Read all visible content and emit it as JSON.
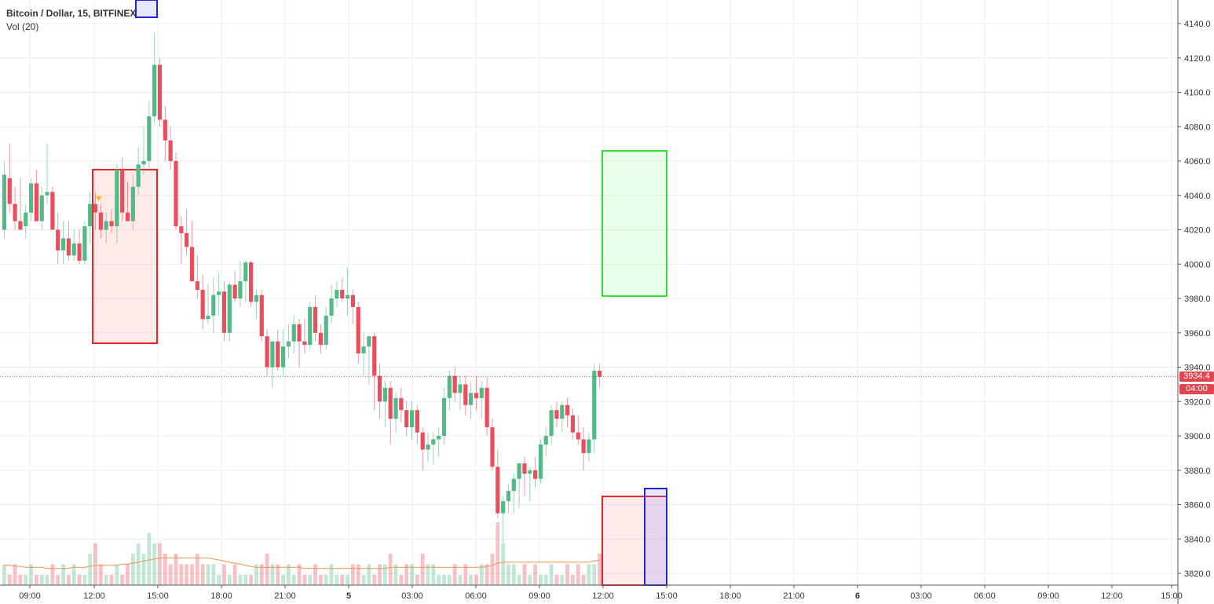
{
  "legend": {
    "title": "Bitcoin / Dollar, 15, BITFINEX",
    "volume_label": "Vol (20)"
  },
  "colors": {
    "up": "#53b987",
    "down": "#eb4d5c",
    "grid": "#e8ecf0",
    "last_price": "#e0454f",
    "box_red": "#e8242a",
    "box_green": "#2ee22e",
    "box_blue": "#2222dd",
    "vol_ma": "#f0924e"
  },
  "current_price": {
    "value": "3934.4",
    "countdown": "04:00"
  },
  "chart_data": {
    "type": "candlestick",
    "title": "",
    "interval_minutes": 15,
    "price_axis": {
      "ylim": [
        3816,
        4150
      ],
      "ticks": [
        4140,
        4120,
        4100,
        4080,
        4060,
        4040,
        4020,
        4000,
        3980,
        3960,
        3940,
        3920,
        3900,
        3880,
        3860,
        3840,
        3820
      ]
    },
    "time_axis": {
      "labels": [
        "09:00",
        "12:00",
        "15:00",
        "18:00",
        "21:00",
        "5",
        "03:00",
        "06:00",
        "09:00",
        "12:00",
        "15:00",
        "18:00",
        "21:00",
        "6",
        "03:00",
        "06:00",
        "09:00",
        "12:00",
        "15:00"
      ]
    },
    "candles": {
      "fields": [
        "open",
        "high",
        "low",
        "close"
      ],
      "values": [
        [
          4020,
          4060,
          4015,
          4052
        ],
        [
          4050,
          4070,
          4030,
          4035
        ],
        [
          4035,
          4045,
          4020,
          4025
        ],
        [
          4025,
          4050,
          4020,
          4020
        ],
        [
          4022,
          4035,
          4015,
          4030
        ],
        [
          4030,
          4050,
          4025,
          4047
        ],
        [
          4047,
          4055,
          4030,
          4025
        ],
        [
          4025,
          4045,
          4020,
          4040
        ],
        [
          4040,
          4070,
          4035,
          4042
        ],
        [
          4042,
          4045,
          4020,
          4020
        ],
        [
          4020,
          4030,
          4000,
          4008
        ],
        [
          4008,
          4025,
          4000,
          4015
        ],
        [
          4015,
          4025,
          4002,
          4005
        ],
        [
          4005,
          4020,
          4002,
          4012
        ],
        [
          4012,
          4020,
          4000,
          4002
        ],
        [
          4002,
          4025,
          4000,
          4022
        ],
        [
          4022,
          4042,
          4012,
          4035
        ],
        [
          4035,
          4042,
          4020,
          4030
        ],
        [
          4030,
          4035,
          4015,
          4020
        ],
        [
          4020,
          4030,
          4012,
          4025
        ],
        [
          4025,
          4032,
          4018,
          4022
        ],
        [
          4022,
          4058,
          4012,
          4055
        ],
        [
          4055,
          4062,
          4025,
          4030
        ],
        [
          4030,
          4048,
          4025,
          4025
        ],
        [
          4025,
          4052,
          4020,
          4045
        ],
        [
          4045,
          4068,
          4040,
          4058
        ],
        [
          4058,
          4080,
          4052,
          4060
        ],
        [
          4060,
          4095,
          4055,
          4086
        ],
        [
          4086,
          4135,
          4082,
          4116
        ],
        [
          4116,
          4120,
          4080,
          4084
        ],
        [
          4084,
          4092,
          4060,
          4072
        ],
        [
          4072,
          4080,
          4055,
          4060
        ],
        [
          4060,
          4065,
          4020,
          4022
        ],
        [
          4022,
          4028,
          4000,
          4018
        ],
        [
          4018,
          4032,
          4005,
          4010
        ],
        [
          4010,
          4025,
          3992,
          3990
        ],
        [
          3990,
          4005,
          3980,
          3985
        ],
        [
          3985,
          3994,
          3962,
          3968
        ],
        [
          3968,
          3988,
          3965,
          3970
        ],
        [
          3970,
          3992,
          3960,
          3982
        ],
        [
          3982,
          3995,
          3970,
          3984
        ],
        [
          3984,
          3990,
          3955,
          3960
        ],
        [
          3960,
          3990,
          3955,
          3988
        ],
        [
          3988,
          3996,
          3978,
          3980
        ],
        [
          3980,
          4002,
          3975,
          3990
        ],
        [
          3990,
          4002,
          3978,
          4001
        ],
        [
          4001,
          4002,
          3975,
          3978
        ],
        [
          3978,
          3985,
          3968,
          3982
        ],
        [
          3982,
          3985,
          3955,
          3958
        ],
        [
          3958,
          3962,
          3935,
          3940
        ],
        [
          3940,
          3950,
          3928,
          3955
        ],
        [
          3955,
          3962,
          3938,
          3940
        ],
        [
          3940,
          3962,
          3935,
          3952
        ],
        [
          3952,
          3965,
          3945,
          3955
        ],
        [
          3955,
          3970,
          3948,
          3965
        ],
        [
          3965,
          3968,
          3940,
          3955
        ],
        [
          3955,
          3968,
          3948,
          3953
        ],
        [
          3953,
          3978,
          3950,
          3975
        ],
        [
          3975,
          3982,
          3955,
          3960
        ],
        [
          3960,
          3965,
          3948,
          3953
        ],
        [
          3953,
          3975,
          3950,
          3970
        ],
        [
          3970,
          3988,
          3965,
          3980
        ],
        [
          3980,
          3990,
          3975,
          3985
        ],
        [
          3985,
          3992,
          3978,
          3980
        ],
        [
          3980,
          3998,
          3970,
          3982
        ],
        [
          3982,
          3985,
          3965,
          3975
        ],
        [
          3975,
          3978,
          3942,
          3948
        ],
        [
          3948,
          3960,
          3935,
          3952
        ],
        [
          3952,
          3958,
          3930,
          3958
        ],
        [
          3958,
          3960,
          3915,
          3935
        ],
        [
          3935,
          3942,
          3910,
          3920
        ],
        [
          3920,
          3932,
          3905,
          3928
        ],
        [
          3928,
          3932,
          3895,
          3910
        ],
        [
          3910,
          3925,
          3902,
          3922
        ],
        [
          3922,
          3928,
          3908,
          3915
        ],
        [
          3915,
          3920,
          3900,
          3905
        ],
        [
          3905,
          3920,
          3898,
          3915
        ],
        [
          3915,
          3918,
          3895,
          3902
        ],
        [
          3902,
          3905,
          3880,
          3892
        ],
        [
          3892,
          3902,
          3885,
          3895
        ],
        [
          3895,
          3902,
          3883,
          3898
        ],
        [
          3898,
          3905,
          3888,
          3900
        ],
        [
          3900,
          3928,
          3895,
          3922
        ],
        [
          3922,
          3938,
          3915,
          3935
        ],
        [
          3935,
          3940,
          3920,
          3925
        ],
        [
          3925,
          3935,
          3915,
          3930
        ],
        [
          3930,
          3935,
          3912,
          3918
        ],
        [
          3918,
          3932,
          3910,
          3925
        ],
        [
          3925,
          3935,
          3915,
          3922
        ],
        [
          3922,
          3932,
          3910,
          3928
        ],
        [
          3928,
          3934,
          3900,
          3905
        ],
        [
          3905,
          3910,
          3880,
          3882
        ],
        [
          3882,
          3892,
          3852,
          3855
        ],
        [
          3855,
          3865,
          3838,
          3862
        ],
        [
          3862,
          3872,
          3855,
          3868
        ],
        [
          3868,
          3878,
          3855,
          3875
        ],
        [
          3875,
          3885,
          3858,
          3884
        ],
        [
          3884,
          3888,
          3865,
          3878
        ],
        [
          3878,
          3882,
          3862,
          3880
        ],
        [
          3880,
          3888,
          3870,
          3875
        ],
        [
          3875,
          3898,
          3872,
          3895
        ],
        [
          3895,
          3905,
          3888,
          3900
        ],
        [
          3900,
          3918,
          3895,
          3915
        ],
        [
          3915,
          3920,
          3905,
          3910
        ],
        [
          3910,
          3920,
          3902,
          3918
        ],
        [
          3918,
          3922,
          3905,
          3912
        ],
        [
          3912,
          3916,
          3898,
          3902
        ],
        [
          3902,
          3912,
          3895,
          3898
        ],
        [
          3898,
          3905,
          3880,
          3890
        ],
        [
          3890,
          3902,
          3885,
          3898
        ],
        [
          3898,
          3942,
          3890,
          3938
        ],
        [
          3938,
          3942,
          3928,
          3934.4
        ]
      ]
    },
    "volume": {
      "label": "Vol (20)",
      "values": [
        2,
        1,
        2,
        1,
        1,
        2,
        1,
        1,
        1,
        2,
        1,
        2,
        1,
        2,
        1,
        1,
        3,
        4,
        2,
        1,
        1,
        2,
        1,
        2,
        3,
        4,
        3,
        5,
        4,
        4,
        3,
        2,
        3,
        2,
        2,
        2,
        3,
        2,
        2,
        2,
        1,
        2,
        1,
        2,
        1,
        1,
        1,
        2,
        2,
        3,
        2,
        2,
        1,
        2,
        1,
        2,
        1,
        1,
        2,
        1,
        1,
        2,
        1,
        1,
        1,
        2,
        2,
        1,
        2,
        1,
        2,
        2,
        3,
        2,
        1,
        2,
        2,
        1,
        3,
        2,
        2,
        1,
        1,
        1,
        2,
        1,
        2,
        1,
        1,
        2,
        2,
        3,
        6,
        4,
        2,
        2,
        1,
        2,
        1,
        2,
        1,
        1,
        2,
        1,
        1,
        2,
        1,
        2,
        1,
        2,
        2,
        3
      ],
      "ma": [
        1.9,
        1.9,
        1.8,
        1.8,
        1.7,
        1.7,
        1.7,
        1.7,
        1.6,
        1.6,
        1.6,
        1.6,
        1.6,
        1.7,
        1.7,
        1.7,
        1.8,
        1.9,
        1.9,
        1.9,
        1.9,
        1.9,
        2.0,
        2.0,
        2.1,
        2.2,
        2.3,
        2.4,
        2.5,
        2.6,
        2.6,
        2.6,
        2.6,
        2.6,
        2.6,
        2.6,
        2.6,
        2.6,
        2.6,
        2.5,
        2.4,
        2.3,
        2.2,
        2.1,
        2.0,
        1.9,
        1.8,
        1.7,
        1.7,
        1.7,
        1.7,
        1.7,
        1.7,
        1.7,
        1.7,
        1.7,
        1.6,
        1.6,
        1.6,
        1.6,
        1.6,
        1.6,
        1.6,
        1.6,
        1.6,
        1.6,
        1.6,
        1.6,
        1.6,
        1.6,
        1.6,
        1.6,
        1.7,
        1.7,
        1.7,
        1.7,
        1.7,
        1.7,
        1.7,
        1.7,
        1.7,
        1.7,
        1.7,
        1.7,
        1.7,
        1.7,
        1.7,
        1.7,
        1.7,
        1.7,
        1.8,
        1.9,
        2.1,
        2.2,
        2.2,
        2.2,
        2.2,
        2.2,
        2.2,
        2.2,
        2.2,
        2.2,
        2.2,
        2.2,
        2.2,
        2.2,
        2.2,
        2.2,
        2.2,
        2.2,
        2.3,
        2.4
      ]
    },
    "annotations": [
      {
        "type": "box",
        "color": "red",
        "from_bar": 29,
        "to_bar": 49,
        "price_top": 4055,
        "price_bottom": 3954
      },
      {
        "type": "box",
        "color": "blue",
        "from_bar": 42,
        "to_bar": 49,
        "price_top": 4160,
        "price_bottom": 4141
      },
      {
        "type": "box",
        "color": "green",
        "from_bar": 190,
        "to_bar": 210,
        "price_top": 4065,
        "price_bottom": 3981
      },
      {
        "type": "box",
        "color": "red",
        "from_bar": 190,
        "to_bar": 210,
        "price_top": 3865,
        "price_bottom": 3815
      },
      {
        "type": "box",
        "color": "blue",
        "from_bar": 204,
        "to_bar": 210,
        "price_top": 3870,
        "price_bottom": 3815
      },
      {
        "type": "marker",
        "shape": "triangle-down",
        "color": "#f2c200",
        "bar": 31,
        "price": 4037
      }
    ],
    "grid": true,
    "legend_position": "top-left"
  }
}
